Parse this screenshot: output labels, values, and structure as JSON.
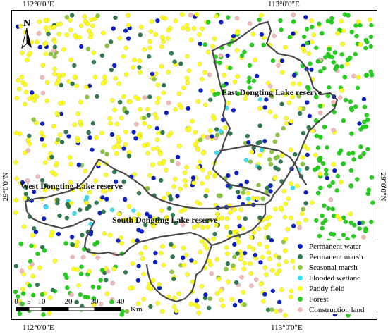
{
  "coords": {
    "top_left": "112°0'0\"E",
    "top_right": "113°0'0\"E",
    "bottom_left": "112°0'0\"E",
    "bottom_right": "113°0'0\"E",
    "left": "29°0'0\"N",
    "right": "29°0'0\"N"
  },
  "north_arrow": {
    "label": "N",
    "icon": "north-arrow-icon"
  },
  "reserves": {
    "east": "East Dongting Lake reserve",
    "west": "West Dongting Lake reserve",
    "south": "South Dongting Lake reserve"
  },
  "legend": [
    {
      "label": "Permanent water",
      "color": "#0b1fc4"
    },
    {
      "label": "Permanent marsh",
      "color": "#2f7a4f"
    },
    {
      "label": "Seasonal marsh",
      "color": "#8cc63f"
    },
    {
      "label": "Flooded wetland",
      "color": "#34e0f2"
    },
    {
      "label": "Paddy field",
      "color": "#ffff1a"
    },
    {
      "label": "Forest",
      "color": "#22d01a"
    },
    {
      "label": "Construction land",
      "color": "#f2b8b8"
    }
  ],
  "scale": {
    "ticks": [
      "0",
      "5",
      "10",
      "20",
      "30",
      "40"
    ],
    "unit": "Km"
  }
}
